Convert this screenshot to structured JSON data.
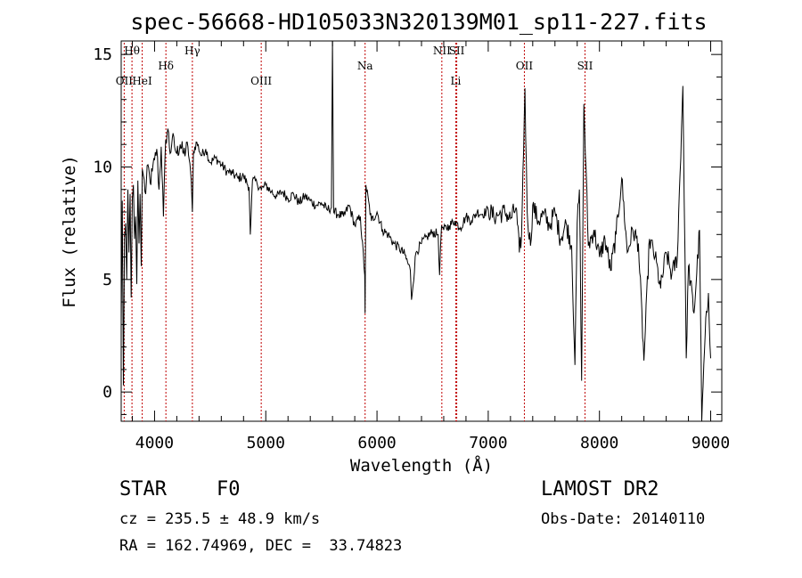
{
  "chart_data": {
    "type": "line",
    "title": "spec-56668-HD105033N320139M01_sp11-227.fits",
    "xlabel": "Wavelength (Å)",
    "ylabel": "Flux (relative)",
    "xlim": [
      3700,
      9100
    ],
    "ylim": [
      -1.3,
      15.6
    ],
    "x_ticks": [
      4000,
      5000,
      6000,
      7000,
      8000,
      9000
    ],
    "y_ticks": [
      0,
      5,
      10,
      15
    ],
    "grid": false,
    "series": [
      {
        "x": [
          3700,
          3710,
          3720,
          3730,
          3740,
          3750,
          3760,
          3770,
          3780,
          3790,
          3800,
          3810,
          3820,
          3830,
          3840,
          3850,
          3860,
          3870,
          3880,
          3890,
          3900,
          3920,
          3940,
          3960,
          3980,
          4000,
          4020,
          4040,
          4060,
          4080,
          4100,
          4120,
          4140,
          4160,
          4180,
          4200,
          4230,
          4260,
          4300,
          4330,
          4340,
          4350,
          4380,
          4420,
          4460,
          4500,
          4550,
          4600,
          4650,
          4700,
          4750,
          4800,
          4850,
          4861,
          4880,
          4920,
          4960,
          5000,
          5050,
          5100,
          5150,
          5200,
          5250,
          5300,
          5350,
          5400,
          5450,
          5500,
          5550,
          5590,
          5600,
          5610,
          5650,
          5700,
          5750,
          5800,
          5850,
          5890,
          5893,
          5900,
          5950,
          6000,
          6050,
          6100,
          6150,
          6200,
          6250,
          6300,
          6310,
          6350,
          6400,
          6450,
          6500,
          6550,
          6563,
          6580,
          6600,
          6650,
          6700,
          6750,
          6800,
          6850,
          6900,
          6950,
          7000,
          7050,
          7100,
          7150,
          7200,
          7250,
          7280,
          7300,
          7330,
          7350,
          7380,
          7400,
          7450,
          7500,
          7550,
          7600,
          7650,
          7700,
          7750,
          7780,
          7800,
          7820,
          7840,
          7860,
          7900,
          7950,
          8000,
          8050,
          8100,
          8150,
          8200,
          8250,
          8300,
          8350,
          8400,
          8450,
          8500,
          8550,
          8600,
          8650,
          8700,
          8750,
          8780,
          8800,
          8850,
          8900,
          8920,
          8950,
          8980,
          9000
        ],
        "y": [
          3.0,
          8.5,
          0.3,
          6.8,
          7.5,
          5.0,
          9.0,
          6.2,
          8.8,
          4.2,
          8.6,
          9.2,
          6.8,
          7.8,
          4.8,
          9.4,
          6.6,
          8.8,
          5.6,
          9.9,
          9.6,
          8.8,
          10.1,
          9.3,
          9.8,
          10.3,
          10.8,
          9.0,
          10.9,
          7.8,
          11.2,
          11.7,
          10.6,
          11.3,
          10.9,
          10.6,
          11.0,
          10.6,
          10.9,
          9.4,
          8.0,
          10.7,
          11.1,
          10.5,
          10.8,
          10.2,
          10.4,
          10.1,
          9.8,
          9.7,
          9.5,
          9.6,
          9.1,
          7.0,
          9.4,
          9.3,
          9.0,
          9.2,
          8.9,
          8.7,
          8.9,
          8.6,
          8.8,
          8.4,
          8.7,
          8.5,
          8.3,
          8.4,
          8.1,
          8.2,
          15.6,
          8.0,
          7.9,
          7.8,
          8.3,
          7.4,
          7.8,
          5.2,
          3.5,
          9.2,
          7.6,
          8.0,
          7.2,
          7.0,
          6.6,
          6.4,
          6.1,
          5.4,
          4.1,
          6.2,
          6.6,
          6.9,
          7.1,
          7.0,
          5.2,
          7.4,
          7.2,
          7.4,
          7.6,
          7.3,
          7.8,
          7.6,
          8.0,
          7.9,
          8.1,
          7.8,
          7.9,
          8.0,
          7.7,
          8.2,
          6.2,
          7.0,
          13.5,
          8.0,
          6.5,
          8.3,
          7.6,
          7.9,
          7.4,
          8.0,
          6.8,
          7.5,
          6.5,
          1.2,
          7.5,
          9.0,
          0.5,
          12.8,
          6.5,
          7.2,
          6.0,
          6.8,
          5.4,
          7.0,
          9.5,
          6.2,
          7.2,
          6.6,
          1.4,
          6.8,
          6.0,
          4.6,
          6.2,
          5.2,
          6.0,
          13.6,
          1.5,
          5.6,
          3.5,
          7.2,
          -1.3,
          2.5,
          4.4,
          1.5
        ]
      }
    ],
    "lines": [
      {
        "label": "Hθ",
        "wavelength": 3797,
        "row": 1
      },
      {
        "label": "OII",
        "wavelength": 3727,
        "row": 3
      },
      {
        "label": "HeI",
        "wavelength": 3889,
        "row": 3
      },
      {
        "label": "Hδ",
        "wavelength": 4102,
        "row": 2
      },
      {
        "label": "Hγ",
        "wavelength": 4340,
        "row": 1
      },
      {
        "label": "OIII",
        "wavelength": 4959,
        "row": 3
      },
      {
        "label": "Na",
        "wavelength": 5893,
        "row": 2
      },
      {
        "label": "NII",
        "wavelength": 6583,
        "row": 1
      },
      {
        "label": "SII",
        "wavelength": 6717,
        "row": 1
      },
      {
        "label": "Li",
        "wavelength": 6708,
        "row": 3
      },
      {
        "label": "OII",
        "wavelength": 7325,
        "row": 2
      },
      {
        "label": "SII",
        "wavelength": 7870,
        "row": 2
      }
    ]
  },
  "footer": {
    "class": "STAR",
    "subclass": "F0",
    "survey": "LAMOST DR2",
    "redshift": "cz = 235.5 ± 48.9 km/s",
    "obs_date": "Obs-Date: 20140110",
    "coords": "RA = 162.74969, DEC =  33.74823"
  }
}
